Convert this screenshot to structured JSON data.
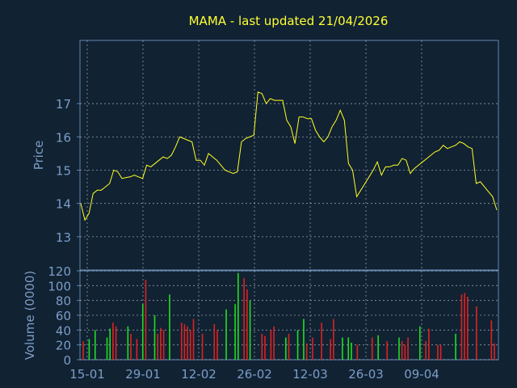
{
  "title": "MAMA - last updated 21/04/2026",
  "colors": {
    "background": "#112233",
    "frame": "#5f86b0",
    "grid": "#c8d0da",
    "axis_text": "#7b9ec6",
    "title": "#ffff33",
    "price_line": "#ffff22",
    "volume_up": "#22dd22",
    "volume_down": "#dd2222"
  },
  "chart_data": [
    {
      "type": "line",
      "ylabel": "Price",
      "ylim": [
        12.0,
        18.9
      ],
      "yticks": [
        13,
        14,
        15,
        16,
        17
      ],
      "xlabels": [
        {
          "date": "15-01",
          "index": 0
        },
        {
          "date": "29-01",
          "index": 10
        },
        {
          "date": "12-02",
          "index": 20
        },
        {
          "date": "26-02",
          "index": 30
        },
        {
          "date": "12-03",
          "index": 40
        },
        {
          "date": "26-03",
          "index": 50
        },
        {
          "date": "09-04",
          "index": 60
        }
      ],
      "grid": true,
      "series": [
        {
          "values": [
            14.0,
            13.5,
            13.7,
            14.3,
            14.4,
            14.4,
            14.5,
            14.6,
            15.0,
            14.95,
            14.75,
            14.78,
            14.8,
            14.85,
            14.8,
            14.75,
            15.15,
            15.1,
            15.2,
            15.3,
            15.4,
            15.35,
            15.45,
            15.7,
            16.0,
            15.95,
            15.9,
            15.85,
            15.3,
            15.3,
            15.15,
            15.5,
            15.4,
            15.3,
            15.15,
            15.0,
            14.95,
            14.9,
            14.95,
            15.85,
            15.95,
            16.0,
            16.05,
            17.35,
            17.3,
            17.0,
            17.15,
            17.1,
            17.1,
            17.1,
            16.5,
            16.3,
            15.8,
            16.6,
            16.6,
            16.55,
            16.55,
            16.2,
            16.0,
            15.85,
            16.0,
            16.3,
            16.5,
            16.8,
            16.5,
            15.2,
            15.0,
            14.2,
            14.4,
            14.6,
            14.8,
            15.0,
            15.25,
            14.85,
            15.1,
            15.1,
            15.15,
            15.15,
            15.35,
            15.3,
            14.9,
            15.05,
            15.15,
            15.25,
            15.35,
            15.45,
            15.55,
            15.6,
            15.75,
            15.65,
            15.7,
            15.75,
            15.85,
            15.8,
            15.7,
            15.65,
            14.6,
            14.65,
            14.5,
            14.35,
            14.2,
            13.8
          ]
        }
      ]
    },
    {
      "type": "bar",
      "ylabel": "Volume (0000)",
      "ylim": [
        0,
        120
      ],
      "yticks": [
        0,
        20,
        40,
        60,
        80,
        100,
        120
      ],
      "grid": true,
      "series": [
        {
          "values": [
            25,
            0,
            28,
            0,
            40,
            0,
            0,
            0,
            30,
            42,
            50,
            45,
            0,
            0,
            0,
            45,
            35,
            0,
            28,
            0,
            75,
            108,
            0,
            0,
            60,
            35,
            43,
            40,
            0,
            88,
            0,
            0,
            0,
            50,
            48,
            45,
            40,
            55,
            0,
            0,
            35,
            0,
            0,
            0,
            48,
            40,
            0,
            0,
            68,
            0,
            0,
            75,
            117,
            0,
            110,
            95,
            80,
            0,
            0,
            0,
            35,
            32,
            0,
            40,
            45,
            0,
            0,
            0,
            30,
            35,
            0,
            0,
            40,
            0,
            55,
            22,
            0,
            30,
            0,
            0,
            50,
            0,
            0,
            28,
            55,
            0,
            0,
            30,
            0,
            30,
            23,
            0,
            20,
            0,
            0,
            0,
            0,
            30,
            0,
            33,
            0,
            0,
            25,
            0,
            0,
            0,
            30,
            25,
            20,
            30,
            0,
            0,
            0,
            45,
            0,
            25,
            42,
            0,
            0,
            20,
            20,
            0,
            0,
            0,
            0,
            35,
            0,
            88,
            90,
            85,
            0,
            0,
            72,
            0,
            0,
            0,
            0,
            53,
            22
          ],
          "colors": [
            "d",
            "u",
            "u",
            "u",
            "u",
            "u",
            "u",
            "u",
            "u",
            "u",
            "d",
            "d",
            "u",
            "u",
            "u",
            "u",
            "d",
            "u",
            "d",
            "u",
            "u",
            "d",
            "u",
            "u",
            "u",
            "d",
            "d",
            "d",
            "u",
            "u",
            "u",
            "u",
            "u",
            "d",
            "d",
            "d",
            "d",
            "d",
            "u",
            "u",
            "d",
            "u",
            "u",
            "u",
            "d",
            "d",
            "u",
            "u",
            "u",
            "u",
            "u",
            "u",
            "u",
            "u",
            "d",
            "d",
            "u",
            "u",
            "u",
            "u",
            "d",
            "d",
            "u",
            "d",
            "d",
            "u",
            "u",
            "u",
            "u",
            "d",
            "u",
            "u",
            "u",
            "u",
            "u",
            "d",
            "u",
            "d",
            "u",
            "u",
            "d",
            "u",
            "u",
            "d",
            "d",
            "u",
            "u",
            "u",
            "u",
            "u",
            "u",
            "u",
            "d",
            "u",
            "u",
            "u",
            "u",
            "d",
            "u",
            "u",
            "u",
            "u",
            "d",
            "u",
            "u",
            "u",
            "u",
            "d",
            "d",
            "d",
            "u",
            "u",
            "u",
            "u",
            "u",
            "d",
            "d",
            "u",
            "u",
            "d",
            "d",
            "u",
            "u",
            "u",
            "u",
            "u",
            "u",
            "d",
            "d",
            "d",
            "u",
            "u",
            "d",
            "u",
            "u",
            "u",
            "u",
            "d",
            "d"
          ]
        }
      ]
    }
  ]
}
